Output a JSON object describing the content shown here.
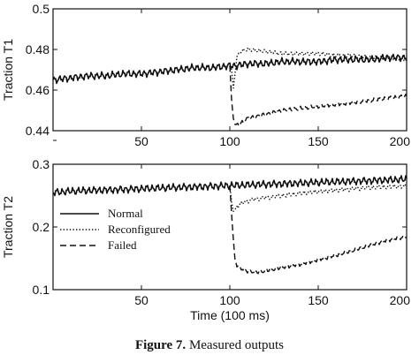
{
  "caption": {
    "label": "Figure 7.",
    "text": " Measured outputs"
  },
  "chart_data": [
    {
      "type": "line",
      "ylabel": "Traction T1",
      "xlabel": "",
      "xlim": [
        0,
        200
      ],
      "ylim": [
        0.44,
        0.5
      ],
      "xticks": [
        0,
        50,
        100,
        150,
        200
      ],
      "xtick_labels": [
        "",
        "50",
        "100",
        "150",
        "200"
      ],
      "yticks": [
        0.44,
        0.46,
        0.48,
        0.5
      ],
      "ytick_labels": [
        "0.44",
        "0.46",
        "0.48",
        "0.5"
      ],
      "grid": false,
      "series": [
        {
          "key": "normal",
          "style": "solid",
          "x": [
            0,
            10,
            20,
            30,
            40,
            50,
            60,
            70,
            80,
            90,
            100,
            103,
            110,
            120,
            130,
            140,
            150,
            160,
            170,
            180,
            190,
            200
          ],
          "y": [
            0.465,
            0.466,
            0.467,
            0.467,
            0.468,
            0.468,
            0.469,
            0.47,
            0.471,
            0.471,
            0.472,
            0.472,
            0.473,
            0.473,
            0.474,
            0.474,
            0.474,
            0.475,
            0.475,
            0.475,
            0.476,
            0.476
          ]
        },
        {
          "key": "reconfigured",
          "style": "dotted",
          "x": [
            100,
            101,
            102,
            104,
            106,
            110,
            120,
            130,
            140,
            150,
            160,
            170,
            180,
            190,
            200
          ],
          "y": [
            0.472,
            0.47,
            0.461,
            0.476,
            0.479,
            0.48,
            0.479,
            0.478,
            0.478,
            0.478,
            0.477,
            0.477,
            0.476,
            0.476,
            0.475
          ]
        },
        {
          "key": "failed",
          "style": "dashed",
          "x": [
            100,
            101,
            102,
            103,
            105,
            110,
            120,
            130,
            140,
            150,
            160,
            170,
            180,
            190,
            200
          ],
          "y": [
            0.472,
            0.455,
            0.446,
            0.443,
            0.443,
            0.446,
            0.448,
            0.45,
            0.451,
            0.452,
            0.453,
            0.454,
            0.455,
            0.456,
            0.457
          ]
        }
      ]
    },
    {
      "type": "line",
      "ylabel": "Traction T2",
      "xlabel": "Time (100 ms)",
      "xlim": [
        0,
        200
      ],
      "ylim": [
        0.1,
        0.3
      ],
      "xticks": [
        0,
        50,
        100,
        150,
        200
      ],
      "xtick_labels": [
        "",
        "50",
        "100",
        "150",
        "200"
      ],
      "yticks": [
        0.1,
        0.2,
        0.3
      ],
      "ytick_labels": [
        "0.1",
        "0.2",
        "0.3"
      ],
      "grid": false,
      "legend": {
        "placement": "lower-left",
        "entries": [
          "Normal",
          "Reconfigured",
          "Failed"
        ]
      },
      "series": [
        {
          "key": "normal",
          "name": "Normal",
          "style": "solid",
          "x": [
            0,
            10,
            20,
            30,
            40,
            50,
            60,
            70,
            80,
            90,
            100,
            110,
            120,
            130,
            140,
            150,
            160,
            170,
            180,
            190,
            200
          ],
          "y": [
            0.255,
            0.257,
            0.258,
            0.259,
            0.26,
            0.261,
            0.262,
            0.263,
            0.264,
            0.265,
            0.266,
            0.267,
            0.268,
            0.269,
            0.27,
            0.271,
            0.272,
            0.273,
            0.274,
            0.275,
            0.276
          ]
        },
        {
          "key": "reconfigured",
          "name": "Reconfigured",
          "style": "dotted",
          "x": [
            100,
            101,
            102,
            104,
            108,
            115,
            130,
            145,
            160,
            175,
            190,
            200
          ],
          "y": [
            0.266,
            0.24,
            0.225,
            0.232,
            0.24,
            0.245,
            0.25,
            0.255,
            0.259,
            0.262,
            0.264,
            0.265
          ]
        },
        {
          "key": "failed",
          "name": "Failed",
          "style": "dashed",
          "x": [
            100,
            101,
            102,
            103,
            105,
            110,
            115,
            120,
            130,
            140,
            150,
            160,
            170,
            180,
            190,
            200
          ],
          "y": [
            0.266,
            0.22,
            0.18,
            0.145,
            0.135,
            0.13,
            0.128,
            0.13,
            0.136,
            0.141,
            0.148,
            0.155,
            0.163,
            0.172,
            0.18,
            0.185
          ]
        }
      ]
    }
  ]
}
